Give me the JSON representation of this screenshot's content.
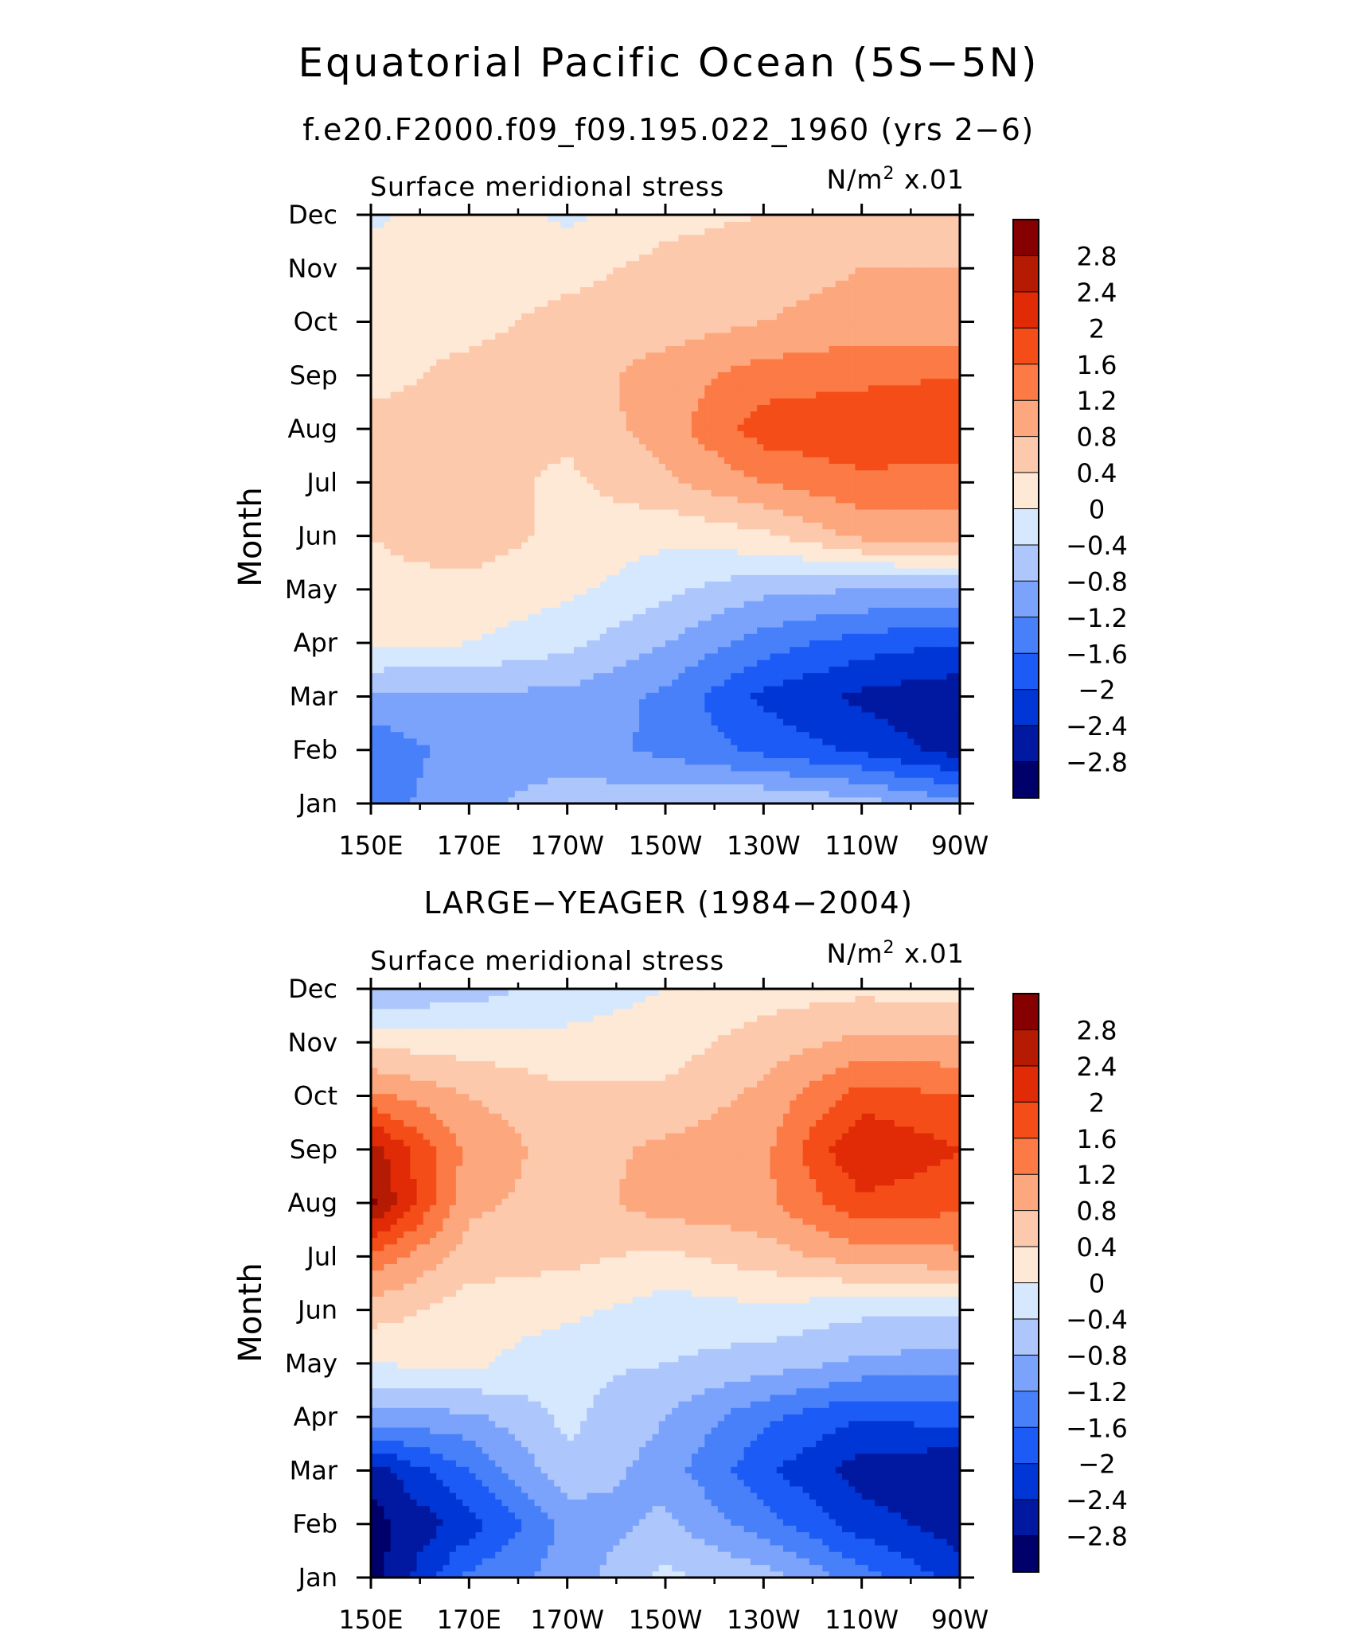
{
  "figure": {
    "title": "Equatorial Pacific Ocean (5S−5N)",
    "subtitle": "f.e20.F2000.f09_f09.195.022_1960 (yrs 2−6)"
  },
  "panels": [
    {
      "title": "",
      "left_label": "Surface meridional stress",
      "units_prefix": "N/m",
      "units_sup": "2",
      "units_suffix": " x.01",
      "ylabel": "Month"
    },
    {
      "title": "LARGE−YEAGER (1984−2004)",
      "left_label": "Surface meridional stress",
      "units_prefix": "N/m",
      "units_sup": "2",
      "units_suffix": " x.01",
      "ylabel": "Month"
    }
  ],
  "chart_data": [
    {
      "type": "heatmap",
      "title": "",
      "xlabel": "",
      "ylabel": "Month",
      "x_ticks": [
        "150E",
        "170E",
        "170W",
        "150W",
        "130W",
        "110W",
        "90W"
      ],
      "x_values": [
        150,
        170,
        190,
        210,
        230,
        250,
        270
      ],
      "y_ticks": [
        "Jan",
        "Feb",
        "Mar",
        "Apr",
        "May",
        "Jun",
        "Jul",
        "Aug",
        "Sep",
        "Oct",
        "Nov",
        "Dec"
      ],
      "levels": [
        -2.8,
        -2.4,
        -2.0,
        -1.6,
        -1.2,
        -0.8,
        -0.4,
        0,
        0.4,
        0.8,
        1.2,
        1.6,
        2.0,
        2.4,
        2.8
      ],
      "values": [
        [
          -1.4,
          -0.9,
          -0.6,
          -0.5,
          -0.4,
          -0.6,
          -1.1
        ],
        [
          -1.5,
          -1.0,
          -1.0,
          -1.3,
          -1.7,
          -2.1,
          -2.6
        ],
        [
          -0.9,
          -0.9,
          -0.9,
          -1.3,
          -2.1,
          -2.5,
          -2.7
        ],
        [
          0.1,
          0.0,
          -0.3,
          -0.8,
          -1.4,
          -1.8,
          -2.0
        ],
        [
          0.3,
          0.3,
          0.1,
          -0.3,
          -0.7,
          -0.8,
          -0.8
        ],
        [
          0.4,
          0.6,
          0.3,
          0.1,
          0.3,
          0.9,
          1.0
        ],
        [
          0.5,
          0.6,
          0.3,
          0.7,
          1.2,
          1.5,
          1.4
        ],
        [
          0.5,
          0.5,
          0.5,
          1.0,
          1.8,
          1.9,
          1.9
        ],
        [
          0.3,
          0.5,
          0.6,
          1.0,
          1.4,
          1.5,
          1.6
        ],
        [
          0.3,
          0.3,
          0.5,
          0.6,
          0.8,
          1.0,
          0.9
        ],
        [
          0.2,
          0.3,
          0.3,
          0.5,
          0.6,
          0.8,
          0.8
        ],
        [
          -0.1,
          0.3,
          -0.1,
          0.3,
          0.4,
          0.5,
          0.5
        ]
      ],
      "colorbar_labels": [
        "2.8",
        "2.4",
        "2",
        "1.6",
        "1.2",
        "0.8",
        "0.4",
        "0",
        "−0.4",
        "−0.8",
        "−1.2",
        "−1.6",
        "−2",
        "−2.4",
        "−2.8"
      ]
    },
    {
      "type": "heatmap",
      "title": "LARGE−YEAGER (1984−2004)",
      "xlabel": "",
      "ylabel": "Month",
      "x_ticks": [
        "150E",
        "170E",
        "170W",
        "150W",
        "130W",
        "110W",
        "90W"
      ],
      "x_values": [
        150,
        170,
        190,
        210,
        230,
        250,
        270
      ],
      "y_ticks": [
        "Jan",
        "Feb",
        "Mar",
        "Apr",
        "May",
        "Jun",
        "Jul",
        "Aug",
        "Sep",
        "Oct",
        "Nov",
        "Dec"
      ],
      "levels": [
        -2.8,
        -2.4,
        -2.0,
        -1.6,
        -1.2,
        -0.8,
        -0.4,
        0,
        0.4,
        0.8,
        1.2,
        1.6,
        2.0,
        2.4,
        2.8
      ],
      "values": [
        [
          -3.0,
          -1.5,
          -1.0,
          -0.3,
          -0.6,
          -1.4,
          -2.2
        ],
        [
          -3.0,
          -2.2,
          -1.1,
          -0.7,
          -1.4,
          -2.2,
          -2.6
        ],
        [
          -2.6,
          -1.6,
          -0.5,
          -1.0,
          -1.9,
          -2.6,
          -2.8
        ],
        [
          -1.0,
          -0.9,
          -0.3,
          -0.8,
          -1.5,
          -2.0,
          -1.8
        ],
        [
          0.0,
          0.1,
          -0.3,
          -0.4,
          -0.6,
          -0.9,
          -1.0
        ],
        [
          0.6,
          0.2,
          0.1,
          -0.2,
          -0.1,
          -0.3,
          -0.3
        ],
        [
          1.5,
          0.6,
          0.5,
          0.3,
          0.6,
          1.0,
          1.1
        ],
        [
          2.9,
          0.9,
          0.6,
          1.0,
          1.1,
          1.9,
          1.7
        ],
        [
          2.6,
          1.1,
          0.6,
          0.9,
          1.1,
          2.4,
          2.0
        ],
        [
          1.3,
          0.8,
          0.5,
          0.5,
          0.9,
          1.8,
          1.6
        ],
        [
          0.3,
          0.2,
          0.1,
          0.2,
          0.6,
          0.9,
          0.9
        ],
        [
          -0.8,
          -0.6,
          -0.2,
          0.0,
          0.2,
          0.3,
          0.2
        ]
      ],
      "colorbar_labels": [
        "2.8",
        "2.4",
        "2",
        "1.6",
        "1.2",
        "0.8",
        "0.4",
        "0",
        "−0.4",
        "−0.8",
        "−1.2",
        "−1.6",
        "−2",
        "−2.4",
        "−2.8"
      ]
    }
  ],
  "colors": {
    "palette": [
      "#00006b",
      "#0019a0",
      "#0036d6",
      "#1c5bf5",
      "#4880fa",
      "#7ba3fb",
      "#adc6fb",
      "#d6e8fd",
      "#fde9d6",
      "#fdc9ac",
      "#fca77d",
      "#fb7a45",
      "#f54d18",
      "#e12a06",
      "#b51a02",
      "#870000"
    ]
  }
}
